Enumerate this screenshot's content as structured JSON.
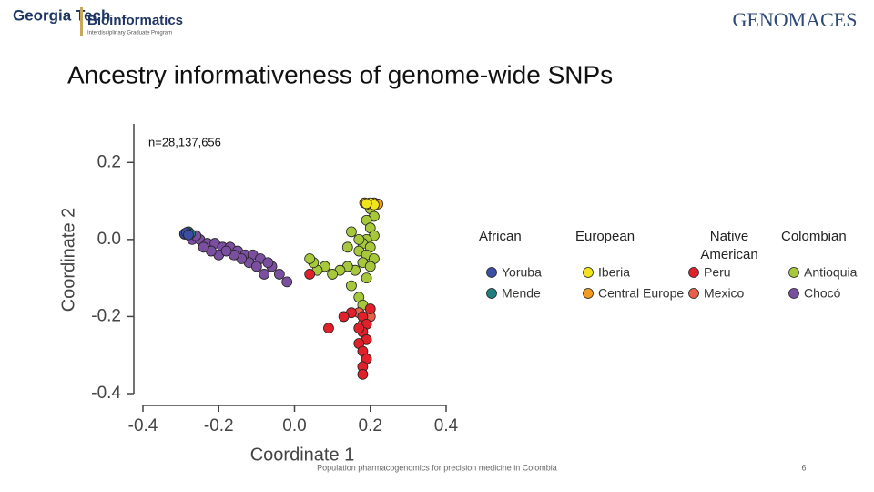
{
  "header": {
    "left_logo": "Georgia Tech",
    "left_logo_name": "Bioinformatics",
    "left_logo_sub": "Interdisciplinary Graduate Program",
    "right_logo": "GENOMACES"
  },
  "title": "Ancestry informativeness of genome-wide SNPs",
  "chart_data": {
    "type": "scatter",
    "annotation": "n=28,137,656",
    "xlabel": "Coordinate 1",
    "ylabel": "Coordinate 2",
    "xlim": [
      -0.4,
      0.4
    ],
    "xticks": [
      -0.4,
      -0.2,
      {
        "value": 0,
        "label": "0.0"
      },
      0.2,
      0.4
    ],
    "ylim": [
      -0.4,
      0.3
    ],
    "yticks": [
      -0.4,
      -0.2,
      {
        "value": 0,
        "label": "0.0"
      },
      0.2
    ],
    "legend_groups": [
      "African",
      "European",
      "Native American",
      "Colombian"
    ],
    "series": [
      {
        "name": "Yoruba",
        "group": 0,
        "color": "#3b4ea3",
        "x": [
          -0.29,
          -0.285,
          -0.28
        ],
        "values": [
          0.015,
          0.018,
          0.012
        ]
      },
      {
        "name": "Mende",
        "group": 0,
        "color": "#1e7f7f",
        "x": [
          -0.285,
          -0.29,
          -0.28,
          -0.275
        ],
        "values": [
          0.017,
          0.014,
          0.02,
          0.015
        ]
      },
      {
        "name": "Iberia",
        "group": 1,
        "color": "#f2e41c",
        "x": [
          0.2,
          0.21,
          0.19
        ],
        "values": [
          0.095,
          0.09,
          0.093
        ]
      },
      {
        "name": "Central Europe",
        "group": 1,
        "color": "#f29a21",
        "x": [
          0.21,
          0.2,
          0.22,
          0.185
        ],
        "values": [
          0.095,
          0.09,
          0.092,
          0.095
        ]
      },
      {
        "name": "Peru",
        "group": 2,
        "color": "#e0202a",
        "x": [
          0.18,
          0.19,
          0.18,
          0.19,
          0.17,
          0.18,
          0.19,
          0.18,
          0.18,
          0.17,
          0.15,
          0.13,
          0.09,
          0.04,
          0.2
        ],
        "values": [
          -0.2,
          -0.22,
          -0.24,
          -0.26,
          -0.27,
          -0.29,
          -0.31,
          -0.33,
          -0.35,
          -0.23,
          -0.19,
          -0.2,
          -0.23,
          -0.09,
          -0.18
        ]
      },
      {
        "name": "Mexico",
        "group": 2,
        "color": "#e8604a",
        "x": [
          0.19,
          0.18,
          0.17,
          0.2
        ],
        "values": [
          -0.21,
          -0.22,
          -0.19,
          -0.2
        ]
      },
      {
        "name": "Antioquia",
        "group": 3,
        "color": "#a6c83a",
        "x": [
          0.2,
          0.21,
          0.19,
          0.2,
          0.21,
          0.19,
          0.18,
          0.2,
          0.17,
          0.19,
          0.21,
          0.18,
          0.2,
          0.16,
          0.14,
          0.12,
          0.1,
          0.08,
          0.06,
          0.05,
          0.04,
          0.15,
          0.17,
          0.18,
          0.14,
          0.15,
          0.17,
          0.19
        ],
        "values": [
          0.08,
          0.06,
          0.05,
          0.03,
          0.01,
          0.0,
          -0.01,
          -0.02,
          -0.03,
          -0.04,
          -0.05,
          -0.06,
          -0.07,
          -0.08,
          -0.07,
          -0.08,
          -0.09,
          -0.07,
          -0.08,
          -0.06,
          -0.05,
          -0.12,
          -0.15,
          -0.17,
          -0.02,
          0.02,
          0.0,
          -0.1
        ]
      },
      {
        "name": "Chocó",
        "group": 3,
        "color": "#7b4fa0",
        "x": [
          -0.27,
          -0.25,
          -0.23,
          -0.21,
          -0.19,
          -0.17,
          -0.15,
          -0.2,
          -0.22,
          -0.13,
          -0.11,
          -0.09,
          -0.12,
          -0.14,
          -0.16,
          -0.18,
          -0.06,
          -0.08,
          -0.07,
          -0.02,
          -0.04,
          -0.24,
          -0.26,
          -0.1
        ],
        "values": [
          0.0,
          0.0,
          -0.01,
          -0.01,
          -0.02,
          -0.02,
          -0.03,
          -0.04,
          -0.03,
          -0.04,
          -0.04,
          -0.05,
          -0.06,
          -0.05,
          -0.04,
          -0.03,
          -0.07,
          -0.09,
          -0.06,
          -0.11,
          -0.09,
          -0.02,
          0.01,
          -0.07
        ]
      }
    ]
  },
  "footer": {
    "text": "Population pharmacogenomics for precision medicine in Colombia",
    "page": "6"
  }
}
